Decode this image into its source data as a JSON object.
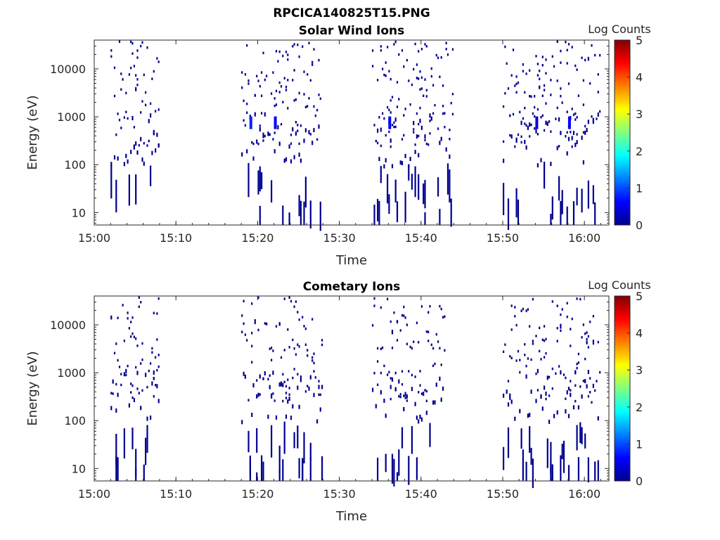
{
  "figure_title": "RPCICA140825T15.PNG",
  "colormap": [
    "#00008f",
    "#0000ff",
    "#0080ff",
    "#00ffff",
    "#80ff80",
    "#ffff00",
    "#ff8000",
    "#ff0000",
    "#800000"
  ],
  "chart_data": [
    {
      "type": "heatmap",
      "title": "Solar Wind Ions",
      "xlabel": "Time",
      "ylabel": "Energy (eV)",
      "x_ticks": [
        "15:00",
        "15:10",
        "15:20",
        "15:30",
        "15:40",
        "15:50",
        "16:00"
      ],
      "x_range": [
        "15:00",
        "16:03"
      ],
      "y_scale": "log",
      "y_ticks": [
        "10",
        "100",
        "1000",
        "10000"
      ],
      "y_range": [
        5.5,
        40000
      ],
      "colorbar": {
        "label": "Log Counts",
        "range": [
          0,
          5
        ],
        "ticks": [
          "0",
          "1",
          "2",
          "3",
          "4",
          "5"
        ]
      },
      "active_intervals": [
        [
          "15:02",
          "15:08"
        ],
        [
          "15:18",
          "15:28"
        ],
        [
          "15:34",
          "15:44"
        ],
        [
          "15:50",
          "16:02"
        ]
      ],
      "notable_cells": [
        {
          "time": "15:19",
          "energy": 750,
          "log_counts": 0.8
        },
        {
          "time": "15:22",
          "energy": 750,
          "log_counts": 0.6
        },
        {
          "time": "15:36",
          "energy": 750,
          "log_counts": 0.6
        },
        {
          "time": "15:54",
          "energy": 750,
          "log_counts": 0.5
        },
        {
          "time": "15:58",
          "energy": 750,
          "log_counts": 0.6
        }
      ],
      "background_log_counts": 0
    },
    {
      "type": "heatmap",
      "title": "Cometary Ions",
      "xlabel": "Time",
      "ylabel": "Energy (eV)",
      "x_ticks": [
        "15:00",
        "15:10",
        "15:20",
        "15:30",
        "15:40",
        "15:50",
        "16:00"
      ],
      "x_range": [
        "15:00",
        "16:03"
      ],
      "y_scale": "log",
      "y_ticks": [
        "10",
        "100",
        "1000",
        "10000"
      ],
      "y_range": [
        5.5,
        40000
      ],
      "colorbar": {
        "label": "Log Counts",
        "range": [
          0,
          5
        ],
        "ticks": [
          "0",
          "1",
          "2",
          "3",
          "4",
          "5"
        ]
      },
      "active_intervals": [
        [
          "15:02",
          "15:08"
        ],
        [
          "15:18",
          "15:28"
        ],
        [
          "15:34",
          "15:43"
        ],
        [
          "15:50",
          "16:02"
        ]
      ],
      "notable_cells": [],
      "background_log_counts": 0
    }
  ]
}
